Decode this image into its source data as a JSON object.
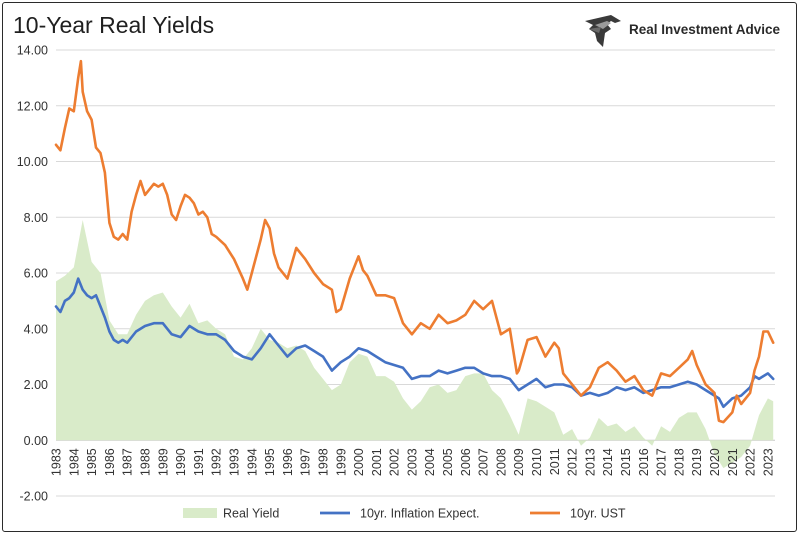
{
  "title": "10-Year Real Yields",
  "brand": {
    "name": "Real Investment Advice",
    "logo_icon": "eagle-icon"
  },
  "colors": {
    "real_yield": "#d9ebc9",
    "inflation": "#4472c4",
    "ust": "#ed7d31",
    "grid": "#d9d9d9",
    "axis_text": "#333333"
  },
  "chart_data": {
    "type": "line",
    "title": "10-Year Real Yields",
    "xlabel": "",
    "ylabel": "",
    "ylim": [
      -2,
      14
    ],
    "xlim": [
      1983,
      2023.4
    ],
    "yticks": [
      "-2.00",
      "0.00",
      "2.00",
      "4.00",
      "6.00",
      "8.00",
      "10.00",
      "12.00",
      "14.00"
    ],
    "xticks": [
      "1983",
      "1984",
      "1985",
      "1986",
      "1987",
      "1988",
      "1989",
      "1990",
      "1991",
      "1992",
      "1993",
      "1994",
      "1995",
      "1996",
      "1997",
      "1998",
      "1999",
      "2000",
      "2001",
      "2002",
      "2003",
      "2004",
      "2005",
      "2006",
      "2007",
      "2008",
      "2009",
      "2010",
      "2011",
      "2012",
      "2013",
      "2014",
      "2015",
      "2016",
      "2017",
      "2018",
      "2019",
      "2020",
      "2021",
      "2022",
      "2023"
    ],
    "grid": "horizontal",
    "legend_position": "bottom",
    "series": [
      {
        "name": "Real Yield",
        "style": "area",
        "x": [
          1983,
          1983.5,
          1984,
          1984.5,
          1985,
          1985.5,
          1986,
          1986.5,
          1987,
          1987.5,
          1988,
          1988.5,
          1989,
          1989.5,
          1990,
          1990.5,
          1991,
          1991.5,
          1992,
          1992.5,
          1993,
          1993.5,
          1994,
          1994.5,
          1995,
          1995.5,
          1996,
          1996.5,
          1997,
          1997.5,
          1998,
          1998.5,
          1999,
          1999.5,
          2000,
          2000.5,
          2001,
          2001.5,
          2002,
          2002.5,
          2003,
          2003.5,
          2004,
          2004.5,
          2005,
          2005.5,
          2006,
          2006.5,
          2007,
          2007.5,
          2008,
          2008.5,
          2009,
          2009.5,
          2010,
          2010.5,
          2011,
          2011.5,
          2012,
          2012.5,
          2013,
          2013.5,
          2014,
          2014.5,
          2015,
          2015.5,
          2016,
          2016.5,
          2017,
          2017.5,
          2018,
          2018.5,
          2019,
          2019.5,
          2020,
          2020.5,
          2021,
          2021.5,
          2022,
          2022.5,
          2023,
          2023.3
        ],
        "values": [
          5.7,
          5.9,
          6.2,
          7.9,
          6.4,
          6.0,
          4.3,
          3.8,
          3.8,
          4.5,
          5.0,
          5.2,
          5.3,
          4.8,
          4.4,
          4.9,
          4.2,
          4.3,
          4.0,
          3.8,
          3.0,
          2.9,
          3.3,
          4.0,
          3.6,
          3.5,
          3.3,
          3.4,
          3.2,
          2.6,
          2.2,
          1.8,
          2.0,
          2.8,
          3.1,
          3.0,
          2.3,
          2.3,
          2.1,
          1.5,
          1.1,
          1.4,
          1.9,
          2.0,
          1.7,
          1.8,
          2.3,
          2.4,
          2.4,
          1.8,
          1.5,
          0.9,
          0.2,
          1.5,
          1.4,
          1.2,
          1.0,
          0.2,
          0.4,
          -0.2,
          0.1,
          0.8,
          0.5,
          0.6,
          0.3,
          0.5,
          0.1,
          -0.2,
          0.5,
          0.3,
          0.8,
          1.0,
          1.0,
          0.4,
          -0.5,
          -1.0,
          -0.8,
          -0.6,
          -0.2,
          0.9,
          1.5,
          1.4
        ]
      },
      {
        "name": "10yr. Inflation Expect.",
        "style": "line",
        "x": [
          1983,
          1983.25,
          1983.5,
          1983.75,
          1984,
          1984.25,
          1984.5,
          1984.75,
          1985,
          1985.25,
          1985.5,
          1985.75,
          1986,
          1986.25,
          1986.5,
          1986.75,
          1987,
          1987.5,
          1988,
          1988.5,
          1989,
          1989.5,
          1990,
          1990.5,
          1991,
          1991.5,
          1992,
          1992.5,
          1993,
          1993.5,
          1994,
          1994.5,
          1995,
          1995.5,
          1996,
          1996.5,
          1997,
          1997.5,
          1998,
          1998.5,
          1999,
          1999.5,
          2000,
          2000.5,
          2001,
          2001.5,
          2002,
          2002.5,
          2003,
          2003.5,
          2004,
          2004.5,
          2005,
          2005.5,
          2006,
          2006.5,
          2007,
          2007.5,
          2008,
          2008.5,
          2009,
          2009.5,
          2010,
          2010.5,
          2011,
          2011.5,
          2012,
          2012.5,
          2013,
          2013.5,
          2014,
          2014.5,
          2015,
          2015.5,
          2016,
          2016.5,
          2017,
          2017.5,
          2018,
          2018.5,
          2019,
          2019.5,
          2020,
          2020.25,
          2020.5,
          2021,
          2021.5,
          2022,
          2022.25,
          2022.5,
          2022.75,
          2023,
          2023.3
        ],
        "values": [
          4.8,
          4.6,
          5.0,
          5.1,
          5.3,
          5.8,
          5.4,
          5.2,
          5.1,
          5.2,
          4.8,
          4.4,
          3.9,
          3.6,
          3.5,
          3.6,
          3.5,
          3.9,
          4.1,
          4.2,
          4.2,
          3.8,
          3.7,
          4.1,
          3.9,
          3.8,
          3.8,
          3.6,
          3.2,
          3.0,
          2.9,
          3.3,
          3.8,
          3.4,
          3.0,
          3.3,
          3.4,
          3.2,
          3.0,
          2.5,
          2.8,
          3.0,
          3.3,
          3.2,
          3.0,
          2.8,
          2.7,
          2.6,
          2.2,
          2.3,
          2.3,
          2.5,
          2.4,
          2.5,
          2.6,
          2.6,
          2.4,
          2.3,
          2.3,
          2.2,
          1.8,
          2.0,
          2.2,
          1.9,
          2.0,
          2.0,
          1.9,
          1.6,
          1.7,
          1.6,
          1.7,
          1.9,
          1.8,
          1.9,
          1.7,
          1.8,
          1.9,
          1.9,
          2.0,
          2.1,
          2.0,
          1.8,
          1.6,
          1.5,
          1.2,
          1.5,
          1.6,
          1.9,
          2.3,
          2.2,
          2.3,
          2.4,
          2.2
        ]
      },
      {
        "name": "10yr. UST",
        "style": "line",
        "x": [
          1983,
          1983.25,
          1983.5,
          1983.75,
          1984,
          1984.25,
          1984.4,
          1984.5,
          1984.75,
          1985,
          1985.25,
          1985.5,
          1985.75,
          1986,
          1986.25,
          1986.5,
          1986.75,
          1987,
          1987.25,
          1987.5,
          1987.75,
          1988,
          1988.25,
          1988.5,
          1988.75,
          1989,
          1989.25,
          1989.5,
          1989.75,
          1990,
          1990.25,
          1990.5,
          1990.75,
          1991,
          1991.25,
          1991.5,
          1991.75,
          1992,
          1992.5,
          1993,
          1993.5,
          1993.75,
          1994,
          1994.5,
          1994.75,
          1995,
          1995.25,
          1995.5,
          1996,
          1996.5,
          1997,
          1997.5,
          1998,
          1998.5,
          1998.75,
          1999,
          1999.5,
          2000,
          2000.25,
          2000.5,
          2001,
          2001.5,
          2002,
          2002.5,
          2003,
          2003.5,
          2004,
          2004.5,
          2005,
          2005.5,
          2006,
          2006.5,
          2007,
          2007.5,
          2008,
          2008.5,
          2008.9,
          2009,
          2009.5,
          2010,
          2010.5,
          2011,
          2011.25,
          2011.5,
          2012,
          2012.5,
          2013,
          2013.5,
          2014,
          2014.5,
          2015,
          2015.5,
          2016,
          2016.5,
          2017,
          2017.5,
          2018,
          2018.5,
          2018.75,
          2019,
          2019.5,
          2020,
          2020.25,
          2020.5,
          2021,
          2021.25,
          2021.5,
          2022,
          2022.25,
          2022.5,
          2022.75,
          2023,
          2023.3
        ],
        "values": [
          10.6,
          10.4,
          11.2,
          11.9,
          11.8,
          13.0,
          13.6,
          12.5,
          11.8,
          11.5,
          10.5,
          10.3,
          9.6,
          7.8,
          7.3,
          7.2,
          7.4,
          7.2,
          8.2,
          8.8,
          9.3,
          8.8,
          9.0,
          9.2,
          9.1,
          9.2,
          8.8,
          8.1,
          7.9,
          8.4,
          8.8,
          8.7,
          8.5,
          8.1,
          8.2,
          8.0,
          7.4,
          7.3,
          7.0,
          6.5,
          5.8,
          5.4,
          6.0,
          7.2,
          7.9,
          7.6,
          6.7,
          6.2,
          5.8,
          6.9,
          6.5,
          6.0,
          5.6,
          5.4,
          4.6,
          4.7,
          5.8,
          6.6,
          6.1,
          5.9,
          5.2,
          5.2,
          5.1,
          4.2,
          3.8,
          4.2,
          4.0,
          4.5,
          4.2,
          4.3,
          4.5,
          5.0,
          4.7,
          5.0,
          3.8,
          4.0,
          2.4,
          2.5,
          3.6,
          3.7,
          3.0,
          3.5,
          3.3,
          2.4,
          2.0,
          1.6,
          1.9,
          2.6,
          2.8,
          2.5,
          2.1,
          2.3,
          1.8,
          1.6,
          2.4,
          2.3,
          2.6,
          2.9,
          3.2,
          2.7,
          2.0,
          1.7,
          0.7,
          0.65,
          1.0,
          1.6,
          1.3,
          1.7,
          2.5,
          3.0,
          3.9,
          3.9,
          3.5
        ]
      }
    ]
  }
}
